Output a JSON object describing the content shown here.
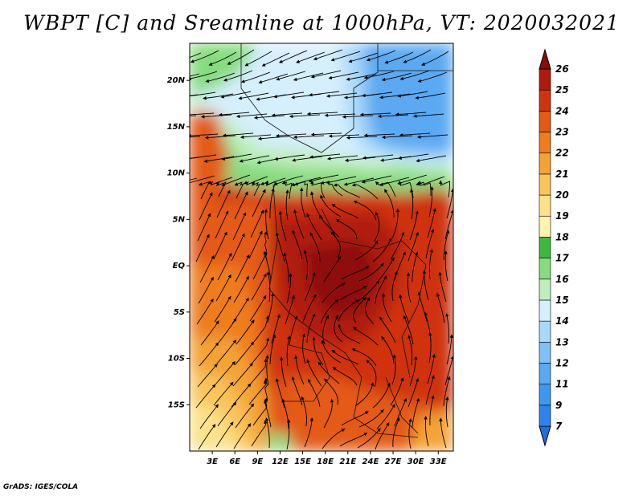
{
  "title": "WBPT [C] and Sreamline at 1000hPa, VT: 2020032021",
  "credit": "GrADS: IGES/COLA",
  "map": {
    "lat_labels": [
      "20N",
      "15N",
      "10N",
      "5N",
      "EQ",
      "5S",
      "10S",
      "15S"
    ],
    "lon_labels": [
      "3E",
      "6E",
      "9E",
      "12E",
      "15E",
      "18E",
      "21E",
      "24E",
      "27E",
      "30E",
      "33E"
    ],
    "lat_range": [
      -20,
      24
    ],
    "lon_range": [
      0,
      35
    ]
  },
  "colorbar": {
    "levels": [
      "7",
      "9",
      "11",
      "12",
      "13",
      "14",
      "15",
      "16",
      "17",
      "18",
      "19",
      "20",
      "21",
      "22",
      "23",
      "24",
      "25",
      "26"
    ],
    "colors": [
      "#1e6fe0",
      "#2f82ea",
      "#4096ee",
      "#5aa9f2",
      "#7fc0f6",
      "#a8d8fa",
      "#d5effc",
      "#bfeebc",
      "#86dc7e",
      "#3fb83e",
      "#fff3b0",
      "#fde28a",
      "#f9c45a",
      "#f3a334",
      "#ef7d1a",
      "#e45a12",
      "#cf3310",
      "#b01a0d",
      "#8e0a0a"
    ]
  }
}
